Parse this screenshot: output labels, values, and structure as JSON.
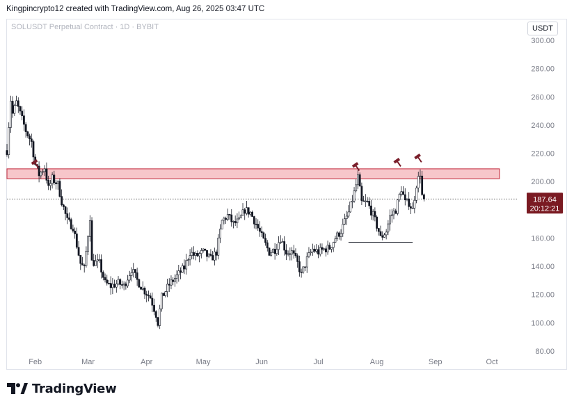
{
  "header": {
    "attribution": "Kingpincrypto12 created with TradingView.com, Aug 26, 2025 03:47 UTC"
  },
  "symbol_info": "SOLUSDT Perpetual Contract · 1D · BYBIT",
  "currency_button": "USDT",
  "footer": {
    "logo_text": "TradingView"
  },
  "colors": {
    "up": "#089981",
    "down": "#f23645",
    "candle": "#131722",
    "zone_fill": "#f7c6ca",
    "zone_border": "#c2273a",
    "marker": "#7a1f2b",
    "price_label_bg": "#7a1a22"
  },
  "chart_data": {
    "type": "candlestick",
    "title": "",
    "xlabel": "",
    "ylabel": "",
    "ylim": [
      80,
      300
    ],
    "y_ticks": [
      "300.00",
      "280.00",
      "260.00",
      "240.00",
      "220.00",
      "200.00",
      "180.00",
      "160.00",
      "140.00",
      "120.00",
      "100.00",
      "80.00"
    ],
    "x_ticks": [
      {
        "label": "Feb",
        "date": "2025-02-01"
      },
      {
        "label": "Mar",
        "date": "2025-03-01"
      },
      {
        "label": "Apr",
        "date": "2025-04-01"
      },
      {
        "label": "May",
        "date": "2025-05-01"
      },
      {
        "label": "Jun",
        "date": "2025-06-01"
      },
      {
        "label": "Jul",
        "date": "2025-07-01"
      },
      {
        "label": "Aug",
        "date": "2025-08-01"
      },
      {
        "label": "Sep",
        "date": "2025-09-01"
      },
      {
        "label": "Oct",
        "date": "2025-10-01"
      }
    ],
    "x_range": [
      "2025-01-17",
      "2025-10-15"
    ],
    "close_path": [
      [
        "2025-01-17",
        222
      ],
      [
        "2025-01-19",
        258
      ],
      [
        "2025-01-20",
        248
      ],
      [
        "2025-01-22",
        256
      ],
      [
        "2025-01-25",
        244
      ],
      [
        "2025-01-27",
        236
      ],
      [
        "2025-01-30",
        228
      ],
      [
        "2025-02-01",
        212
      ],
      [
        "2025-02-03",
        205
      ],
      [
        "2025-02-06",
        210
      ],
      [
        "2025-02-08",
        195
      ],
      [
        "2025-02-10",
        202
      ],
      [
        "2025-02-13",
        198
      ],
      [
        "2025-02-15",
        186
      ],
      [
        "2025-02-18",
        172
      ],
      [
        "2025-02-21",
        168
      ],
      [
        "2025-02-25",
        142
      ],
      [
        "2025-02-27",
        138
      ],
      [
        "2025-03-02",
        175
      ],
      [
        "2025-03-03",
        143
      ],
      [
        "2025-03-07",
        142
      ],
      [
        "2025-03-10",
        128
      ],
      [
        "2025-03-13",
        126
      ],
      [
        "2025-03-17",
        128
      ],
      [
        "2025-03-20",
        126
      ],
      [
        "2025-03-24",
        138
      ],
      [
        "2025-03-27",
        130
      ],
      [
        "2025-03-30",
        124
      ],
      [
        "2025-04-03",
        118
      ],
      [
        "2025-04-06",
        106
      ],
      [
        "2025-04-07",
        100
      ],
      [
        "2025-04-09",
        118
      ],
      [
        "2025-04-13",
        127
      ],
      [
        "2025-04-17",
        133
      ],
      [
        "2025-04-21",
        139
      ],
      [
        "2025-04-24",
        150
      ],
      [
        "2025-04-27",
        147
      ],
      [
        "2025-05-01",
        150
      ],
      [
        "2025-05-05",
        145
      ],
      [
        "2025-05-08",
        150
      ],
      [
        "2025-05-11",
        172
      ],
      [
        "2025-05-14",
        176
      ],
      [
        "2025-05-17",
        170
      ],
      [
        "2025-05-20",
        172
      ],
      [
        "2025-05-23",
        180
      ],
      [
        "2025-05-26",
        178
      ],
      [
        "2025-05-29",
        170
      ],
      [
        "2025-06-02",
        158
      ],
      [
        "2025-06-05",
        150
      ],
      [
        "2025-06-08",
        152
      ],
      [
        "2025-06-11",
        160
      ],
      [
        "2025-06-14",
        150
      ],
      [
        "2025-06-17",
        150
      ],
      [
        "2025-06-20",
        142
      ],
      [
        "2025-06-22",
        134
      ],
      [
        "2025-06-25",
        145
      ],
      [
        "2025-06-28",
        152
      ],
      [
        "2025-07-01",
        150
      ],
      [
        "2025-07-04",
        152
      ],
      [
        "2025-07-07",
        153
      ],
      [
        "2025-07-10",
        160
      ],
      [
        "2025-07-13",
        165
      ],
      [
        "2025-07-17",
        178
      ],
      [
        "2025-07-20",
        192
      ],
      [
        "2025-07-22",
        203
      ],
      [
        "2025-07-24",
        185
      ],
      [
        "2025-07-27",
        185
      ],
      [
        "2025-07-30",
        176
      ],
      [
        "2025-08-02",
        165
      ],
      [
        "2025-08-03",
        160
      ],
      [
        "2025-08-06",
        165
      ],
      [
        "2025-08-08",
        175
      ],
      [
        "2025-08-11",
        180
      ],
      [
        "2025-08-14",
        195
      ],
      [
        "2025-08-16",
        185
      ],
      [
        "2025-08-18",
        185
      ],
      [
        "2025-08-20",
        180
      ],
      [
        "2025-08-22",
        198
      ],
      [
        "2025-08-24",
        206
      ],
      [
        "2025-08-25",
        190
      ],
      [
        "2025-08-26",
        187.64
      ]
    ],
    "annotations": {
      "resistance_zone": {
        "from": "2025-01-17",
        "to": "2025-10-05",
        "low": 202,
        "high": 209
      },
      "support_line": {
        "from": "2025-07-17",
        "to": "2025-08-20",
        "value": 157
      },
      "last_price_line": 187.64,
      "markers": [
        {
          "date": "2025-02-01",
          "price": 210
        },
        {
          "date": "2025-07-21",
          "price": 208
        },
        {
          "date": "2025-08-12",
          "price": 211
        },
        {
          "date": "2025-08-23",
          "price": 214
        }
      ]
    },
    "last_price_label": {
      "price": "187.64",
      "countdown": "20:12:21"
    }
  }
}
